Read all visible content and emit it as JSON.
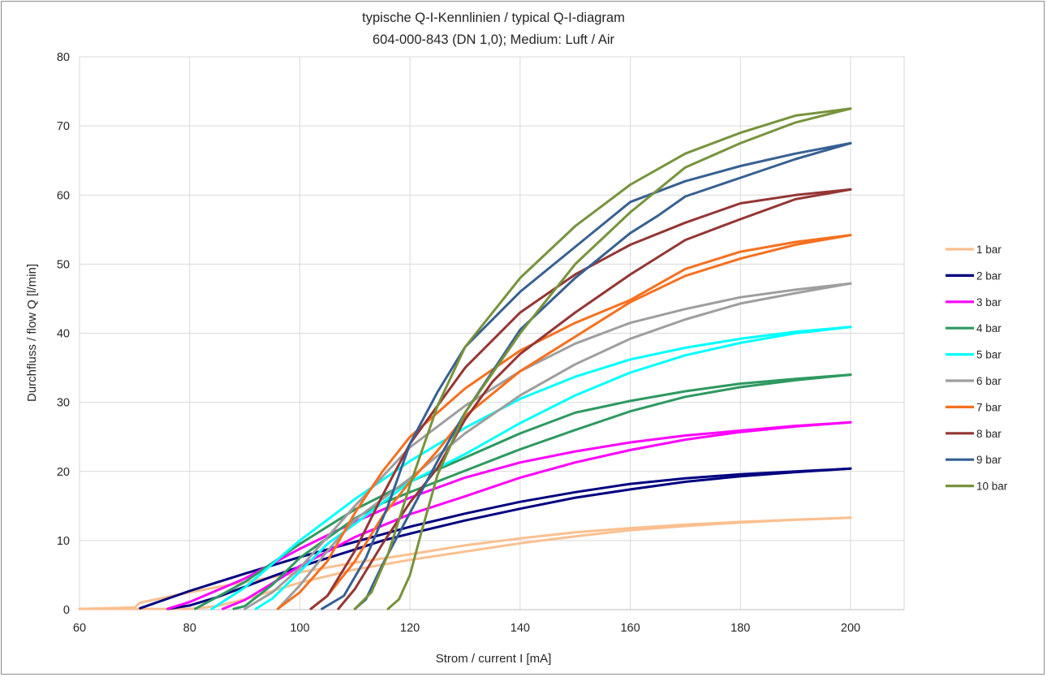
{
  "chart_data": {
    "type": "line",
    "title": "typische Q-I-Kennlinien / typical Q-I-diagram",
    "subtitle": "604-000-843 (DN 1,0); Medium: Luft / Air",
    "xlabel": "Strom / current I [mA]",
    "ylabel": "Durchfluss / flow Q [l/min]",
    "xlim": [
      60,
      200
    ],
    "ylim": [
      0,
      80
    ],
    "xticks": [
      60,
      80,
      100,
      120,
      140,
      160,
      180,
      200
    ],
    "yticks": [
      0,
      10,
      20,
      30,
      40,
      50,
      60,
      70,
      80
    ],
    "grid": true,
    "legend_position": "right",
    "series": [
      {
        "name": "1 bar",
        "color": "#fac090",
        "rising": [
          [
            60,
            0.1
          ],
          [
            70,
            0.3
          ],
          [
            71,
            1.0
          ],
          [
            80,
            2.5
          ],
          [
            90,
            4.0
          ],
          [
            100,
            5.4
          ],
          [
            110,
            6.8
          ],
          [
            120,
            8.0
          ],
          [
            130,
            9.3
          ],
          [
            140,
            10.3
          ],
          [
            150,
            11.2
          ],
          [
            160,
            11.8
          ],
          [
            170,
            12.3
          ],
          [
            180,
            12.7
          ],
          [
            190,
            13.0
          ],
          [
            200,
            13.3
          ]
        ],
        "falling": [
          [
            200,
            13.3
          ],
          [
            190,
            13.0
          ],
          [
            180,
            12.6
          ],
          [
            170,
            12.1
          ],
          [
            160,
            11.5
          ],
          [
            150,
            10.6
          ],
          [
            140,
            9.6
          ],
          [
            130,
            8.4
          ],
          [
            120,
            7.2
          ],
          [
            110,
            5.8
          ],
          [
            100,
            3.9
          ],
          [
            95,
            2.7
          ],
          [
            90,
            1.5
          ],
          [
            85,
            0.5
          ],
          [
            80,
            0.1
          ],
          [
            60,
            0.1
          ]
        ]
      },
      {
        "name": "2 bar",
        "color": "#000080",
        "rising": [
          [
            71,
            0.2
          ],
          [
            80,
            2.7
          ],
          [
            90,
            5.2
          ],
          [
            100,
            7.6
          ],
          [
            110,
            9.8
          ],
          [
            120,
            12.0
          ],
          [
            130,
            13.9
          ],
          [
            140,
            15.6
          ],
          [
            150,
            17.0
          ],
          [
            160,
            18.2
          ],
          [
            170,
            19.0
          ],
          [
            180,
            19.6
          ],
          [
            190,
            20.0
          ],
          [
            200,
            20.4
          ]
        ],
        "falling": [
          [
            200,
            20.4
          ],
          [
            190,
            19.9
          ],
          [
            180,
            19.3
          ],
          [
            170,
            18.5
          ],
          [
            160,
            17.4
          ],
          [
            150,
            16.2
          ],
          [
            140,
            14.6
          ],
          [
            130,
            12.9
          ],
          [
            120,
            11.0
          ],
          [
            115,
            10.0
          ],
          [
            110,
            8.7
          ],
          [
            100,
            6.2
          ],
          [
            95,
            4.8
          ],
          [
            90,
            3.3
          ],
          [
            85,
            1.8
          ],
          [
            80,
            0.6
          ],
          [
            76,
            0.1
          ]
        ]
      },
      {
        "name": "3 bar",
        "color": "#ff00ff",
        "rising": [
          [
            76,
            0.1
          ],
          [
            80,
            1.1
          ],
          [
            90,
            4.5
          ],
          [
            100,
            8.8
          ],
          [
            110,
            12.7
          ],
          [
            120,
            16.2
          ],
          [
            130,
            19.1
          ],
          [
            140,
            21.3
          ],
          [
            150,
            22.9
          ],
          [
            160,
            24.2
          ],
          [
            170,
            25.2
          ],
          [
            180,
            25.9
          ],
          [
            190,
            26.6
          ],
          [
            200,
            27.1
          ]
        ],
        "falling": [
          [
            200,
            27.1
          ],
          [
            190,
            26.5
          ],
          [
            180,
            25.7
          ],
          [
            170,
            24.6
          ],
          [
            160,
            23.1
          ],
          [
            150,
            21.3
          ],
          [
            140,
            19.1
          ],
          [
            130,
            16.4
          ],
          [
            120,
            13.8
          ],
          [
            110,
            10.5
          ],
          [
            100,
            6.3
          ],
          [
            95,
            3.8
          ],
          [
            90,
            1.4
          ],
          [
            86,
            0.1
          ]
        ]
      },
      {
        "name": "4 bar",
        "color": "#2e9960",
        "rising": [
          [
            81,
            0.1
          ],
          [
            90,
            4.0
          ],
          [
            100,
            9.5
          ],
          [
            110,
            14.5
          ],
          [
            120,
            18.5
          ],
          [
            130,
            22.0
          ],
          [
            140,
            25.5
          ],
          [
            150,
            28.5
          ],
          [
            160,
            30.2
          ],
          [
            170,
            31.6
          ],
          [
            180,
            32.7
          ],
          [
            190,
            33.4
          ],
          [
            200,
            34.0
          ]
        ],
        "falling": [
          [
            200,
            34.0
          ],
          [
            190,
            33.2
          ],
          [
            180,
            32.2
          ],
          [
            170,
            30.8
          ],
          [
            160,
            28.7
          ],
          [
            150,
            26.0
          ],
          [
            140,
            23.2
          ],
          [
            130,
            20.1
          ],
          [
            120,
            17.0
          ],
          [
            115,
            15.4
          ],
          [
            110,
            13.2
          ],
          [
            100,
            7.5
          ],
          [
            95,
            3.6
          ],
          [
            90,
            0.5
          ],
          [
            88,
            0.1
          ]
        ]
      },
      {
        "name": "5 bar",
        "color": "#00ffff",
        "rising": [
          [
            84,
            0.1
          ],
          [
            90,
            3.2
          ],
          [
            100,
            10.0
          ],
          [
            110,
            16.0
          ],
          [
            120,
            21.5
          ],
          [
            130,
            26.3
          ],
          [
            140,
            30.5
          ],
          [
            150,
            33.7
          ],
          [
            160,
            36.2
          ],
          [
            170,
            37.9
          ],
          [
            180,
            39.2
          ],
          [
            190,
            40.2
          ],
          [
            200,
            40.9
          ]
        ],
        "falling": [
          [
            200,
            40.9
          ],
          [
            190,
            40.0
          ],
          [
            180,
            38.6
          ],
          [
            170,
            36.8
          ],
          [
            160,
            34.3
          ],
          [
            150,
            31.0
          ],
          [
            140,
            27.0
          ],
          [
            130,
            22.5
          ],
          [
            120,
            18.5
          ],
          [
            110,
            12.4
          ],
          [
            105,
            9.5
          ],
          [
            100,
            5.5
          ],
          [
            95,
            1.6
          ],
          [
            92,
            0.1
          ]
        ]
      },
      {
        "name": "6 bar",
        "color": "#9e9e9e",
        "rising": [
          [
            90,
            0.1
          ],
          [
            95,
            2.5
          ],
          [
            100,
            6.0
          ],
          [
            110,
            15.0
          ],
          [
            120,
            23.5
          ],
          [
            130,
            29.5
          ],
          [
            140,
            34.5
          ],
          [
            150,
            38.5
          ],
          [
            160,
            41.5
          ],
          [
            170,
            43.5
          ],
          [
            180,
            45.2
          ],
          [
            190,
            46.3
          ],
          [
            200,
            47.2
          ]
        ],
        "falling": [
          [
            200,
            47.2
          ],
          [
            190,
            45.8
          ],
          [
            180,
            44.3
          ],
          [
            170,
            42.0
          ],
          [
            160,
            39.2
          ],
          [
            150,
            35.5
          ],
          [
            140,
            31.0
          ],
          [
            130,
            25.5
          ],
          [
            120,
            19.0
          ],
          [
            110,
            13.0
          ],
          [
            105,
            8.5
          ],
          [
            100,
            3.5
          ],
          [
            96,
            0.1
          ]
        ]
      },
      {
        "name": "7 bar",
        "color": "#f5701f",
        "rising": [
          [
            96,
            0.1
          ],
          [
            100,
            2.5
          ],
          [
            105,
            7.0
          ],
          [
            110,
            14.0
          ],
          [
            115,
            20.0
          ],
          [
            120,
            25.0
          ],
          [
            130,
            32.0
          ],
          [
            140,
            37.5
          ],
          [
            150,
            41.5
          ],
          [
            160,
            44.8
          ],
          [
            170,
            49.3
          ],
          [
            180,
            51.8
          ],
          [
            190,
            53.2
          ],
          [
            200,
            54.2
          ]
        ],
        "falling": [
          [
            200,
            54.2
          ],
          [
            190,
            52.8
          ],
          [
            180,
            50.8
          ],
          [
            170,
            48.3
          ],
          [
            160,
            44.5
          ],
          [
            150,
            39.5
          ],
          [
            140,
            34.5
          ],
          [
            130,
            28.0
          ],
          [
            125,
            23.0
          ],
          [
            120,
            18.5
          ],
          [
            115,
            13.5
          ],
          [
            110,
            7.0
          ],
          [
            105,
            2.0
          ],
          [
            102,
            0.1
          ]
        ]
      },
      {
        "name": "8 bar",
        "color": "#943634",
        "rising": [
          [
            102,
            0.1
          ],
          [
            105,
            2.0
          ],
          [
            110,
            8.5
          ],
          [
            115,
            16.5
          ],
          [
            120,
            24.0
          ],
          [
            130,
            35.0
          ],
          [
            140,
            43.0
          ],
          [
            150,
            48.5
          ],
          [
            160,
            52.8
          ],
          [
            170,
            56.0
          ],
          [
            180,
            58.8
          ],
          [
            190,
            60.0
          ],
          [
            200,
            60.8
          ]
        ],
        "falling": [
          [
            200,
            60.8
          ],
          [
            190,
            59.4
          ],
          [
            180,
            56.5
          ],
          [
            170,
            53.5
          ],
          [
            160,
            48.5
          ],
          [
            150,
            43.0
          ],
          [
            140,
            37.0
          ],
          [
            135,
            33.0
          ],
          [
            130,
            27.5
          ],
          [
            125,
            20.5
          ],
          [
            120,
            15.5
          ],
          [
            115,
            9.5
          ],
          [
            110,
            3.0
          ],
          [
            107,
            0.1
          ]
        ]
      },
      {
        "name": "9 bar",
        "color": "#376092",
        "rising": [
          [
            104,
            0.1
          ],
          [
            108,
            2.0
          ],
          [
            112,
            7.5
          ],
          [
            116,
            15.0
          ],
          [
            120,
            24.0
          ],
          [
            125,
            31.5
          ],
          [
            130,
            38.0
          ],
          [
            140,
            46.0
          ],
          [
            150,
            52.5
          ],
          [
            160,
            59.0
          ],
          [
            170,
            62.0
          ],
          [
            180,
            64.2
          ],
          [
            190,
            66.0
          ],
          [
            200,
            67.5
          ]
        ],
        "falling": [
          [
            200,
            67.5
          ],
          [
            190,
            65.2
          ],
          [
            180,
            62.5
          ],
          [
            170,
            59.8
          ],
          [
            165,
            57.0
          ],
          [
            160,
            54.5
          ],
          [
            150,
            48.0
          ],
          [
            140,
            40.5
          ],
          [
            130,
            28.5
          ],
          [
            125,
            21.5
          ],
          [
            120,
            14.0
          ],
          [
            115,
            6.5
          ],
          [
            112,
            1.5
          ],
          [
            110,
            0.1
          ]
        ]
      },
      {
        "name": "10 bar",
        "color": "#77933c",
        "rising": [
          [
            110,
            0.1
          ],
          [
            113,
            2.5
          ],
          [
            116,
            8.0
          ],
          [
            120,
            18.0
          ],
          [
            125,
            29.5
          ],
          [
            130,
            38.0
          ],
          [
            140,
            48.0
          ],
          [
            150,
            55.5
          ],
          [
            160,
            61.5
          ],
          [
            170,
            66.0
          ],
          [
            180,
            69.0
          ],
          [
            190,
            71.5
          ],
          [
            200,
            72.5
          ]
        ],
        "falling": [
          [
            200,
            72.5
          ],
          [
            190,
            70.5
          ],
          [
            180,
            67.5
          ],
          [
            170,
            64.0
          ],
          [
            160,
            57.5
          ],
          [
            150,
            50.0
          ],
          [
            140,
            40.0
          ],
          [
            130,
            28.5
          ],
          [
            125,
            19.5
          ],
          [
            122,
            11.0
          ],
          [
            120,
            5.0
          ],
          [
            118,
            1.5
          ],
          [
            116,
            0.1
          ]
        ]
      }
    ]
  }
}
